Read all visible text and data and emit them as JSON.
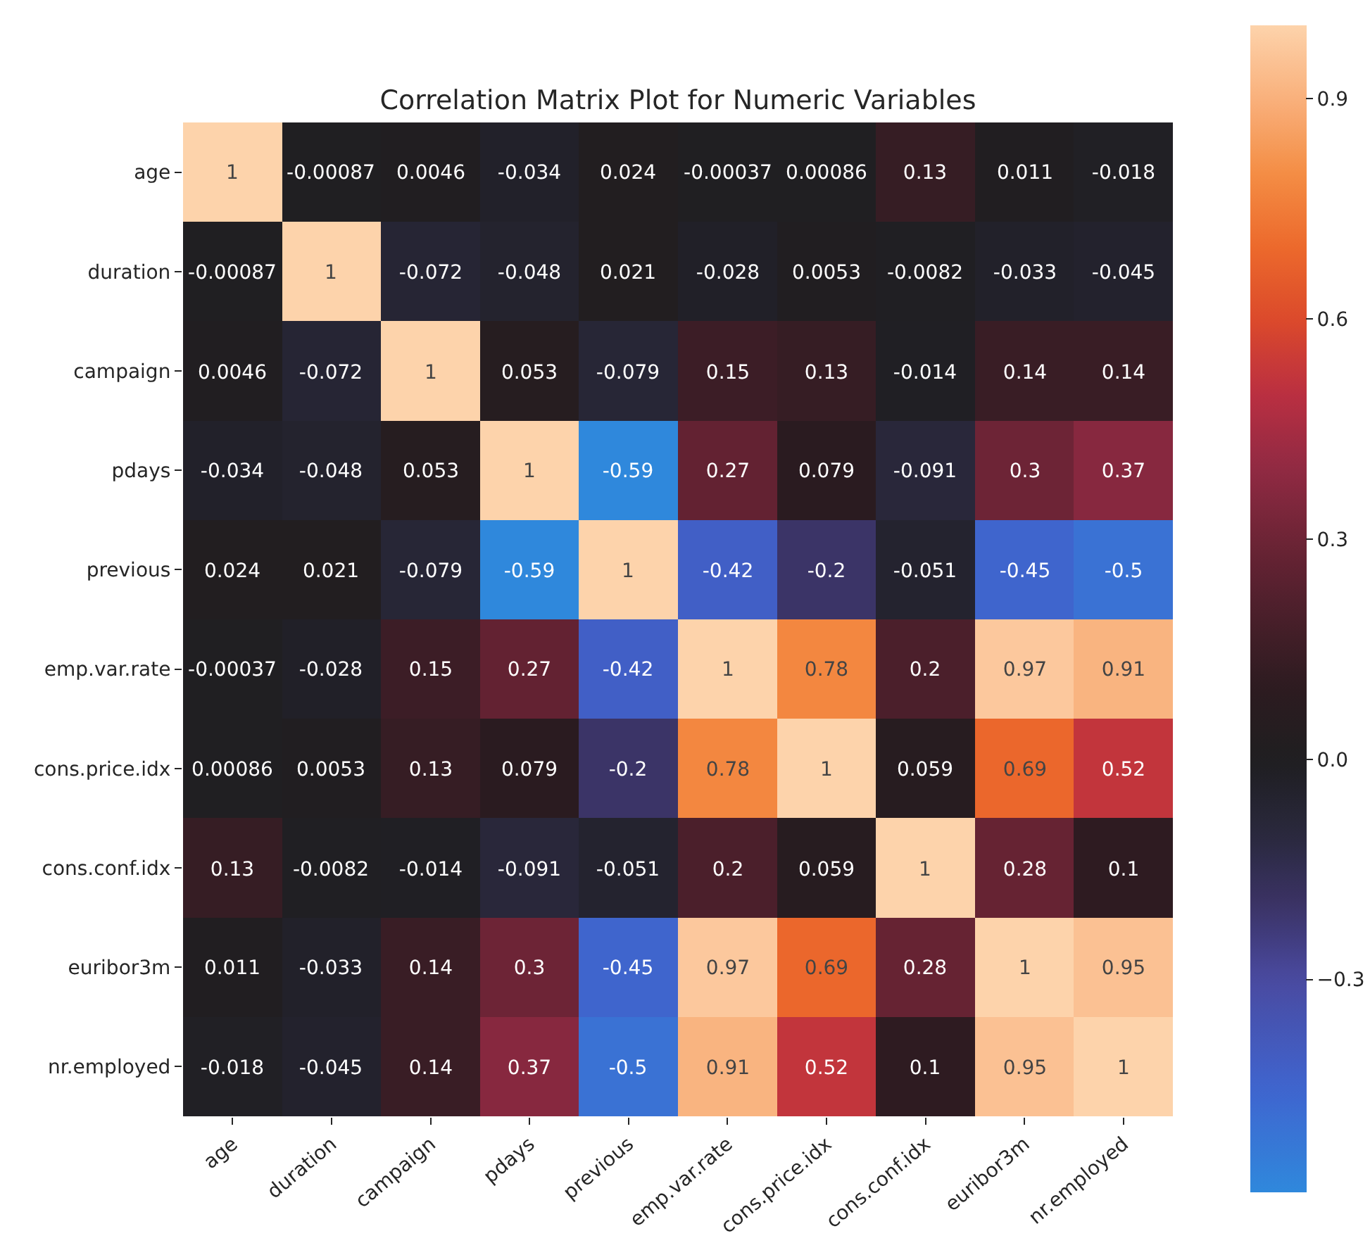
{
  "chart_data": {
    "type": "heatmap",
    "title": "Correlation Matrix Plot for Numeric Variables",
    "categories": [
      "age",
      "duration",
      "campaign",
      "pdays",
      "previous",
      "emp.var.rate",
      "cons.price.idx",
      "cons.conf.idx",
      "euribor3m",
      "nr.employed"
    ],
    "y_categories": [
      "age",
      "duration",
      "campaign",
      "pdays",
      "previous",
      "emp.var.rate",
      "cons.price.idx",
      "cons.conf.idx",
      "euribor3m",
      "nr.employed"
    ],
    "cells": [
      [
        1,
        -0.00087,
        0.0046,
        -0.034,
        0.024,
        -0.00037,
        0.00086,
        0.13,
        0.011,
        -0.018
      ],
      [
        -0.00087,
        1,
        -0.072,
        -0.048,
        0.021,
        -0.028,
        0.0053,
        -0.0082,
        -0.033,
        -0.045
      ],
      [
        0.0046,
        -0.072,
        1,
        0.053,
        -0.079,
        0.15,
        0.13,
        -0.014,
        0.14,
        0.14
      ],
      [
        -0.034,
        -0.048,
        0.053,
        1,
        -0.59,
        0.27,
        0.079,
        -0.091,
        0.3,
        0.37
      ],
      [
        0.024,
        0.021,
        -0.079,
        -0.59,
        1,
        -0.42,
        -0.2,
        -0.051,
        -0.45,
        -0.5
      ],
      [
        -0.00037,
        -0.028,
        0.15,
        0.27,
        -0.42,
        1,
        0.78,
        0.2,
        0.97,
        0.91
      ],
      [
        0.00086,
        0.0053,
        0.13,
        0.079,
        -0.2,
        0.78,
        1,
        0.059,
        0.69,
        0.52
      ],
      [
        0.13,
        -0.0082,
        -0.014,
        -0.091,
        -0.051,
        0.2,
        0.059,
        1,
        0.28,
        0.1
      ],
      [
        0.011,
        -0.033,
        0.14,
        0.3,
        -0.45,
        0.97,
        0.69,
        0.28,
        1,
        0.95
      ],
      [
        -0.018,
        -0.045,
        0.14,
        0.37,
        -0.5,
        0.91,
        0.52,
        0.1,
        0.95,
        1
      ]
    ],
    "clim": [
      -0.59,
      1
    ],
    "cticks": [
      {
        "value": -0.3,
        "label": "−0.3"
      },
      {
        "value": 0,
        "label": "0.0"
      },
      0.3,
      0.6,
      0.9
    ],
    "data_labels": true
  }
}
